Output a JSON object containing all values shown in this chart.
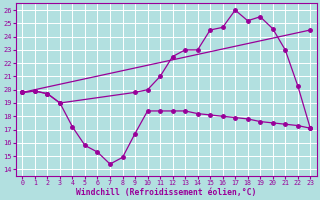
{
  "xlabel": "Windchill (Refroidissement éolien,°C)",
  "xlim": [
    -0.5,
    23.5
  ],
  "ylim": [
    13.5,
    26.5
  ],
  "xticks": [
    0,
    1,
    2,
    3,
    4,
    5,
    6,
    7,
    8,
    9,
    10,
    11,
    12,
    13,
    14,
    15,
    16,
    17,
    18,
    19,
    20,
    21,
    22,
    23
  ],
  "yticks": [
    14,
    15,
    16,
    17,
    18,
    19,
    20,
    21,
    22,
    23,
    24,
    25,
    26
  ],
  "bg_color": "#b2e0e0",
  "grid_color": "#ffffff",
  "line_color": "#990099",
  "line1_x": [
    0,
    23
  ],
  "line1_y": [
    19.8,
    24.5
  ],
  "line2_x": [
    0,
    1,
    2,
    3,
    4,
    5,
    6,
    7,
    8,
    9,
    10,
    11,
    12,
    13,
    14,
    15,
    16,
    17,
    18,
    19,
    20,
    21,
    22,
    23
  ],
  "line2_y": [
    19.8,
    19.9,
    19.7,
    19.0,
    17.2,
    15.8,
    15.3,
    14.4,
    14.9,
    16.7,
    18.4,
    18.4,
    18.4,
    18.4,
    18.2,
    18.1,
    18.0,
    17.9,
    17.8,
    17.6,
    17.5,
    17.4,
    17.3,
    17.1
  ],
  "line3_x": [
    0,
    1,
    2,
    3,
    9,
    10,
    11,
    12,
    13,
    14,
    15,
    16,
    17,
    18,
    19,
    20,
    21,
    22,
    23
  ],
  "line3_y": [
    19.8,
    19.9,
    19.7,
    19.0,
    19.8,
    20.0,
    21.0,
    22.5,
    23.0,
    23.0,
    24.5,
    24.7,
    26.0,
    25.2,
    25.5,
    24.6,
    23.0,
    20.3,
    17.1
  ]
}
